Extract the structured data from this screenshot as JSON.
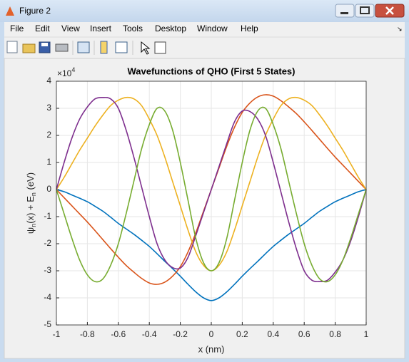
{
  "window": {
    "title": "Figure 2",
    "menu": [
      "File",
      "Edit",
      "View",
      "Insert",
      "Tools",
      "Desktop",
      "Window",
      "Help"
    ]
  },
  "chart_data": {
    "type": "line",
    "title": "Wavefunctions of QHO (First 5 States)",
    "xlabel": "x (nm)",
    "ylabel_parts": [
      "ψ",
      "n",
      "(x) + E",
      "n",
      " (eV)"
    ],
    "y_exponent": [
      "×10",
      "4"
    ],
    "x": [
      -1,
      -0.95,
      -0.9,
      -0.85,
      -0.8,
      -0.75,
      -0.7,
      -0.65,
      -0.6,
      -0.55,
      -0.5,
      -0.45,
      -0.4,
      -0.35,
      -0.3,
      -0.25,
      -0.2,
      -0.15,
      -0.1,
      -0.05,
      0,
      0.05,
      0.1,
      0.15,
      0.2,
      0.25,
      0.3,
      0.35,
      0.4,
      0.45,
      0.5,
      0.55,
      0.6,
      0.65,
      0.7,
      0.75,
      0.8,
      0.85,
      0.9,
      0.95,
      1
    ],
    "series": [
      {
        "color": "#0072BD",
        "values": [
          0,
          -0.08,
          -0.2,
          -0.32,
          -0.45,
          -0.62,
          -0.8,
          -1.02,
          -1.25,
          -1.45,
          -1.65,
          -1.87,
          -2.1,
          -2.37,
          -2.65,
          -2.92,
          -3.2,
          -3.5,
          -3.78,
          -4.0,
          -4.1,
          -4.0,
          -3.78,
          -3.5,
          -3.2,
          -2.92,
          -2.65,
          -2.37,
          -2.1,
          -1.87,
          -1.65,
          -1.45,
          -1.25,
          -1.02,
          -0.8,
          -0.62,
          -0.45,
          -0.32,
          -0.2,
          -0.08,
          0
        ]
      },
      {
        "color": "#D95319",
        "values": [
          0,
          -0.3,
          -0.6,
          -0.9,
          -1.2,
          -1.52,
          -1.85,
          -2.18,
          -2.5,
          -2.8,
          -3.05,
          -3.28,
          -3.45,
          -3.5,
          -3.42,
          -3.2,
          -2.85,
          -2.3,
          -1.6,
          -0.8,
          0,
          0.8,
          1.6,
          2.3,
          2.85,
          3.2,
          3.42,
          3.5,
          3.45,
          3.28,
          3.05,
          2.8,
          2.5,
          2.18,
          1.85,
          1.52,
          1.2,
          0.9,
          0.6,
          0.3,
          0
        ]
      },
      {
        "color": "#EDB120",
        "values": [
          0,
          0.45,
          0.95,
          1.45,
          1.9,
          2.35,
          2.75,
          3.1,
          3.3,
          3.4,
          3.35,
          3.1,
          2.6,
          2.0,
          1.2,
          0.3,
          -0.6,
          -1.5,
          -2.3,
          -2.8,
          -3.0,
          -2.8,
          -2.3,
          -1.5,
          -0.6,
          0.3,
          1.2,
          2.0,
          2.6,
          3.1,
          3.35,
          3.4,
          3.3,
          3.1,
          2.75,
          2.35,
          1.9,
          1.45,
          0.95,
          0.45,
          0
        ]
      },
      {
        "color": "#7E2F8E",
        "values": [
          0,
          1.0,
          1.9,
          2.6,
          3.05,
          3.35,
          3.4,
          3.35,
          3.0,
          2.2,
          1.2,
          0.1,
          -1.0,
          -2.0,
          -2.6,
          -2.88,
          -2.9,
          -2.5,
          -1.7,
          -0.85,
          0,
          0.85,
          1.7,
          2.5,
          2.9,
          2.88,
          2.6,
          2.0,
          1.0,
          -0.1,
          -1.2,
          -2.2,
          -3.0,
          -3.35,
          -3.4,
          -3.35,
          -3.05,
          -2.6,
          -1.9,
          -1.0,
          0
        ]
      },
      {
        "color": "#77AC30",
        "values": [
          0,
          -0.9,
          -1.8,
          -2.6,
          -3.15,
          -3.4,
          -3.3,
          -2.8,
          -2.0,
          -0.9,
          0.3,
          1.5,
          2.4,
          3.0,
          2.9,
          2.2,
          1.0,
          -0.4,
          -1.8,
          -2.7,
          -3.0,
          -2.7,
          -1.8,
          -0.4,
          1.0,
          2.2,
          2.9,
          3.0,
          2.4,
          1.5,
          0.3,
          -0.9,
          -2.0,
          -2.8,
          -3.3,
          -3.4,
          -3.15,
          -2.6,
          -1.8,
          -0.9,
          0
        ]
      }
    ],
    "xlim": [
      -1,
      1
    ],
    "ylim": [
      -5,
      4
    ],
    "xticks": [
      -1,
      -0.8,
      -0.6,
      -0.4,
      -0.2,
      0,
      0.2,
      0.4,
      0.6,
      0.8,
      1
    ],
    "yticks": [
      -5,
      -4,
      -3,
      -2,
      -1,
      0,
      1,
      2,
      3,
      4
    ],
    "grid": true
  }
}
